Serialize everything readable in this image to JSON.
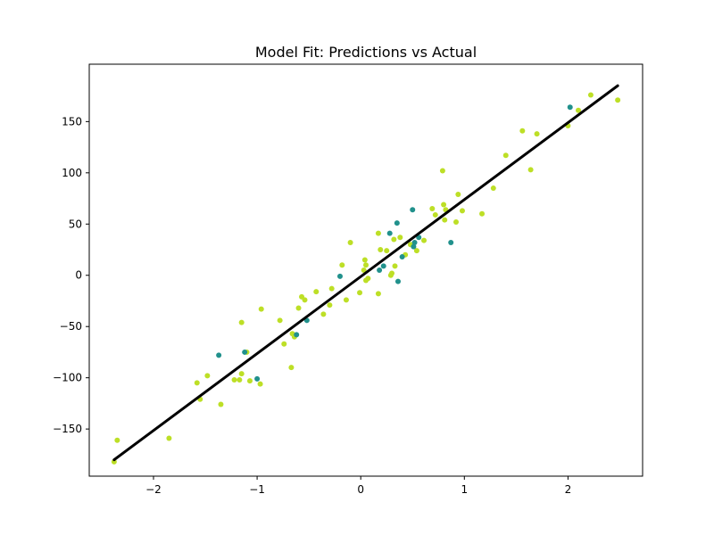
{
  "chart_data": {
    "type": "scatter",
    "title": "Model Fit: Predictions vs Actual",
    "xlabel": "",
    "ylabel": "",
    "xlim": [
      -2.62,
      2.72
    ],
    "ylim": [
      -196,
      206
    ],
    "x_ticks": [
      -2,
      -1,
      0,
      1,
      2
    ],
    "y_ticks": [
      -150,
      -100,
      -50,
      0,
      50,
      100,
      150
    ],
    "grid": false,
    "legend": "none",
    "colors": {
      "points_a": "#bddf26",
      "points_b": "#21918c",
      "fit_line": "#000000"
    },
    "points_a": [
      [
        -2.38,
        -182
      ],
      [
        -2.35,
        -161
      ],
      [
        -1.85,
        -159
      ],
      [
        -1.58,
        -105
      ],
      [
        -1.55,
        -121
      ],
      [
        -1.48,
        -98
      ],
      [
        -1.35,
        -126
      ],
      [
        -1.22,
        -102
      ],
      [
        -1.17,
        -102
      ],
      [
        -1.15,
        -46
      ],
      [
        -1.15,
        -96
      ],
      [
        -1.1,
        -75
      ],
      [
        -1.07,
        -103
      ],
      [
        -0.97,
        -106
      ],
      [
        -0.96,
        -33
      ],
      [
        -0.78,
        -44
      ],
      [
        -0.74,
        -67
      ],
      [
        -0.67,
        -90
      ],
      [
        -0.66,
        -57
      ],
      [
        -0.64,
        -60
      ],
      [
        -0.6,
        -32
      ],
      [
        -0.57,
        -21
      ],
      [
        -0.54,
        -24
      ],
      [
        -0.43,
        -16
      ],
      [
        -0.36,
        -38
      ],
      [
        -0.3,
        -29
      ],
      [
        -0.28,
        -13
      ],
      [
        -0.18,
        10
      ],
      [
        -0.14,
        -24
      ],
      [
        -0.1,
        32
      ],
      [
        -0.01,
        -17
      ],
      [
        0.03,
        5
      ],
      [
        0.04,
        15
      ],
      [
        0.05,
        10
      ],
      [
        0.05,
        -5
      ],
      [
        0.07,
        -3
      ],
      [
        0.17,
        -18
      ],
      [
        0.17,
        41
      ],
      [
        0.19,
        25
      ],
      [
        0.25,
        24
      ],
      [
        0.29,
        0
      ],
      [
        0.3,
        2
      ],
      [
        0.32,
        35
      ],
      [
        0.33,
        9
      ],
      [
        0.38,
        37
      ],
      [
        0.43,
        20
      ],
      [
        0.48,
        30
      ],
      [
        0.54,
        24
      ],
      [
        0.61,
        34
      ],
      [
        0.69,
        65
      ],
      [
        0.72,
        59
      ],
      [
        0.79,
        102
      ],
      [
        0.8,
        69
      ],
      [
        0.81,
        54
      ],
      [
        0.82,
        64
      ],
      [
        0.92,
        52
      ],
      [
        0.94,
        79
      ],
      [
        0.98,
        63
      ],
      [
        1.17,
        60
      ],
      [
        1.28,
        85
      ],
      [
        1.4,
        117
      ],
      [
        1.56,
        141
      ],
      [
        1.64,
        103
      ],
      [
        1.7,
        138
      ],
      [
        2.0,
        146
      ],
      [
        2.1,
        161
      ],
      [
        2.22,
        176
      ],
      [
        2.48,
        171
      ]
    ],
    "points_b": [
      [
        -1.37,
        -78
      ],
      [
        -1.12,
        -75
      ],
      [
        -1.0,
        -101
      ],
      [
        -0.62,
        -58
      ],
      [
        -0.52,
        -44
      ],
      [
        -0.2,
        -1
      ],
      [
        0.18,
        5
      ],
      [
        0.22,
        9
      ],
      [
        0.28,
        41
      ],
      [
        0.35,
        51
      ],
      [
        0.36,
        -6
      ],
      [
        0.4,
        18
      ],
      [
        0.5,
        64
      ],
      [
        0.51,
        28
      ],
      [
        0.52,
        32
      ],
      [
        0.56,
        37
      ],
      [
        0.87,
        32
      ],
      [
        2.02,
        164
      ]
    ],
    "fit_line": {
      "x": [
        -2.38,
        2.48
      ],
      "y": [
        -180,
        185
      ]
    }
  }
}
